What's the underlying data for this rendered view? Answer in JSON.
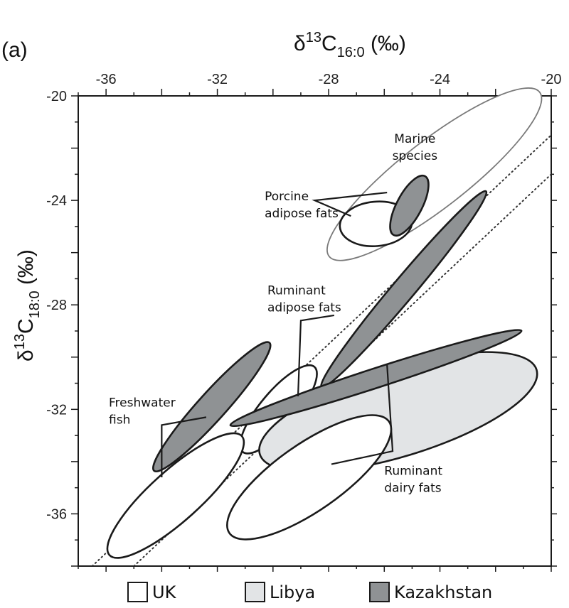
{
  "panel_label": "(a)",
  "chart_data": {
    "type": "scatter",
    "xlabel": "δ13C16:0 (‰)",
    "ylabel": "δ13C18:0 (‰)",
    "xlabel_parts": {
      "symbol": "δ",
      "sup": "13",
      "base": "C",
      "sub": "16:0",
      "unit": "(‰)"
    },
    "ylabel_parts": {
      "symbol": "δ",
      "sup": "13",
      "base": "C",
      "sub": "18:0",
      "unit": "(‰)"
    },
    "xlim": [
      -37,
      -20
    ],
    "ylim": [
      -38,
      -20
    ],
    "x_ticks": [
      -36,
      -32,
      -28,
      -24,
      -20
    ],
    "y_ticks": [
      -20,
      -24,
      -28,
      -32,
      -36
    ],
    "x_axis_position": "top",
    "grid": false,
    "legend_position": "bottom",
    "reference_lines": [
      {
        "style": "dotted",
        "from": [
          -36.5,
          -38
        ],
        "to": [
          -20,
          -21.5
        ]
      },
      {
        "style": "dotted",
        "from": [
          -35,
          -38
        ],
        "to": [
          -20,
          -23
        ]
      }
    ],
    "series": [
      {
        "name": "UK",
        "fill": "#ffffff",
        "stroke": "#1a1a1a"
      },
      {
        "name": "Libya",
        "fill": "#e2e4e6",
        "stroke": "#1a1a1a"
      },
      {
        "name": "Kazakhstan",
        "fill": "#8f9294",
        "stroke": "#1a1a1a"
      }
    ],
    "regions": [
      {
        "series": "UK",
        "group": "Marine species",
        "center": [
          -24.2,
          -23.0
        ],
        "rx_data": 4.8,
        "ry_data": 1.2,
        "angle": -38,
        "stroke": "#7a7a7a"
      },
      {
        "series": "UK",
        "group": "Porcine adipose fats",
        "center": [
          -26.3,
          -24.9
        ],
        "rx_data": 1.3,
        "ry_data": 0.8,
        "angle": -5
      },
      {
        "series": "Kazakhstan",
        "group": "Porcine adipose fats",
        "center": [
          -25.1,
          -24.2
        ],
        "rx_data": 1.2,
        "ry_data": 0.45,
        "angle": -62
      },
      {
        "series": "Kazakhstan",
        "group": "Ruminant adipose fats",
        "center": [
          -25.3,
          -27.4
        ],
        "rx_data": 4.6,
        "ry_data": 0.4,
        "angle": -50
      },
      {
        "series": "UK",
        "group": "Ruminant adipose fats",
        "center": [
          -29.8,
          -32.0
        ],
        "rx_data": 2.0,
        "ry_data": 0.65,
        "angle": -50
      },
      {
        "series": "Libya",
        "group": "Ruminant dairy fats",
        "center": [
          -25.5,
          -32.1
        ],
        "rx_data": 5.2,
        "ry_data": 1.6,
        "angle": -17
      },
      {
        "series": "Kazakhstan",
        "group": "Ruminant dairy fats",
        "center": [
          -26.3,
          -30.8
        ],
        "rx_data": 5.5,
        "ry_data": 0.35,
        "angle": -18
      },
      {
        "series": "UK",
        "group": "Ruminant dairy fats",
        "center": [
          -28.7,
          -34.6
        ],
        "rx_data": 3.5,
        "ry_data": 1.2,
        "angle": -35
      },
      {
        "series": "Kazakhstan",
        "group": "Freshwater fish",
        "center": [
          -32.2,
          -31.9
        ],
        "rx_data": 3.1,
        "ry_data": 0.5,
        "angle": -48
      },
      {
        "series": "UK",
        "group": "Freshwater fish",
        "center": [
          -33.5,
          -35.3
        ],
        "rx_data": 3.2,
        "ry_data": 0.9,
        "angle": -42
      }
    ],
    "annotations": [
      {
        "lines": [
          "Marine",
          "species"
        ],
        "xy": [
          -24.9,
          -21.8
        ],
        "anchor": "middle"
      },
      {
        "lines": [
          "Porcine",
          "adipose fats"
        ],
        "xy": [
          -30.3,
          -24.0
        ],
        "anchor": "start"
      },
      {
        "lines": [
          "Ruminant",
          "adipose fats"
        ],
        "xy": [
          -30.2,
          -27.6
        ],
        "anchor": "start"
      },
      {
        "lines": [
          "Freshwater",
          "fish"
        ],
        "xy": [
          -35.9,
          -31.9
        ],
        "anchor": "start"
      },
      {
        "lines": [
          "Ruminant",
          "dairy fats"
        ],
        "xy": [
          -26.0,
          -34.5
        ],
        "anchor": "start"
      }
    ],
    "leader_lines": [
      {
        "group": "Porcine adipose fats",
        "points": [
          [
            -25.9,
            -23.7
          ],
          [
            -28.5,
            -24.0
          ],
          [
            -27.2,
            -24.6
          ]
        ]
      },
      {
        "group": "Ruminant adipose fats",
        "points": [
          [
            -27.8,
            -28.4
          ],
          [
            -29.0,
            -28.6
          ],
          [
            -29.1,
            -31.5
          ]
        ]
      },
      {
        "group": "Freshwater fish",
        "points": [
          [
            -32.4,
            -32.3
          ],
          [
            -34.0,
            -32.6
          ],
          [
            -34.0,
            -34.6
          ]
        ]
      },
      {
        "group": "Ruminant dairy fats",
        "points": [
          [
            -25.9,
            -30.3
          ],
          [
            -25.7,
            -33.6
          ],
          [
            -27.9,
            -34.1
          ]
        ]
      }
    ]
  }
}
